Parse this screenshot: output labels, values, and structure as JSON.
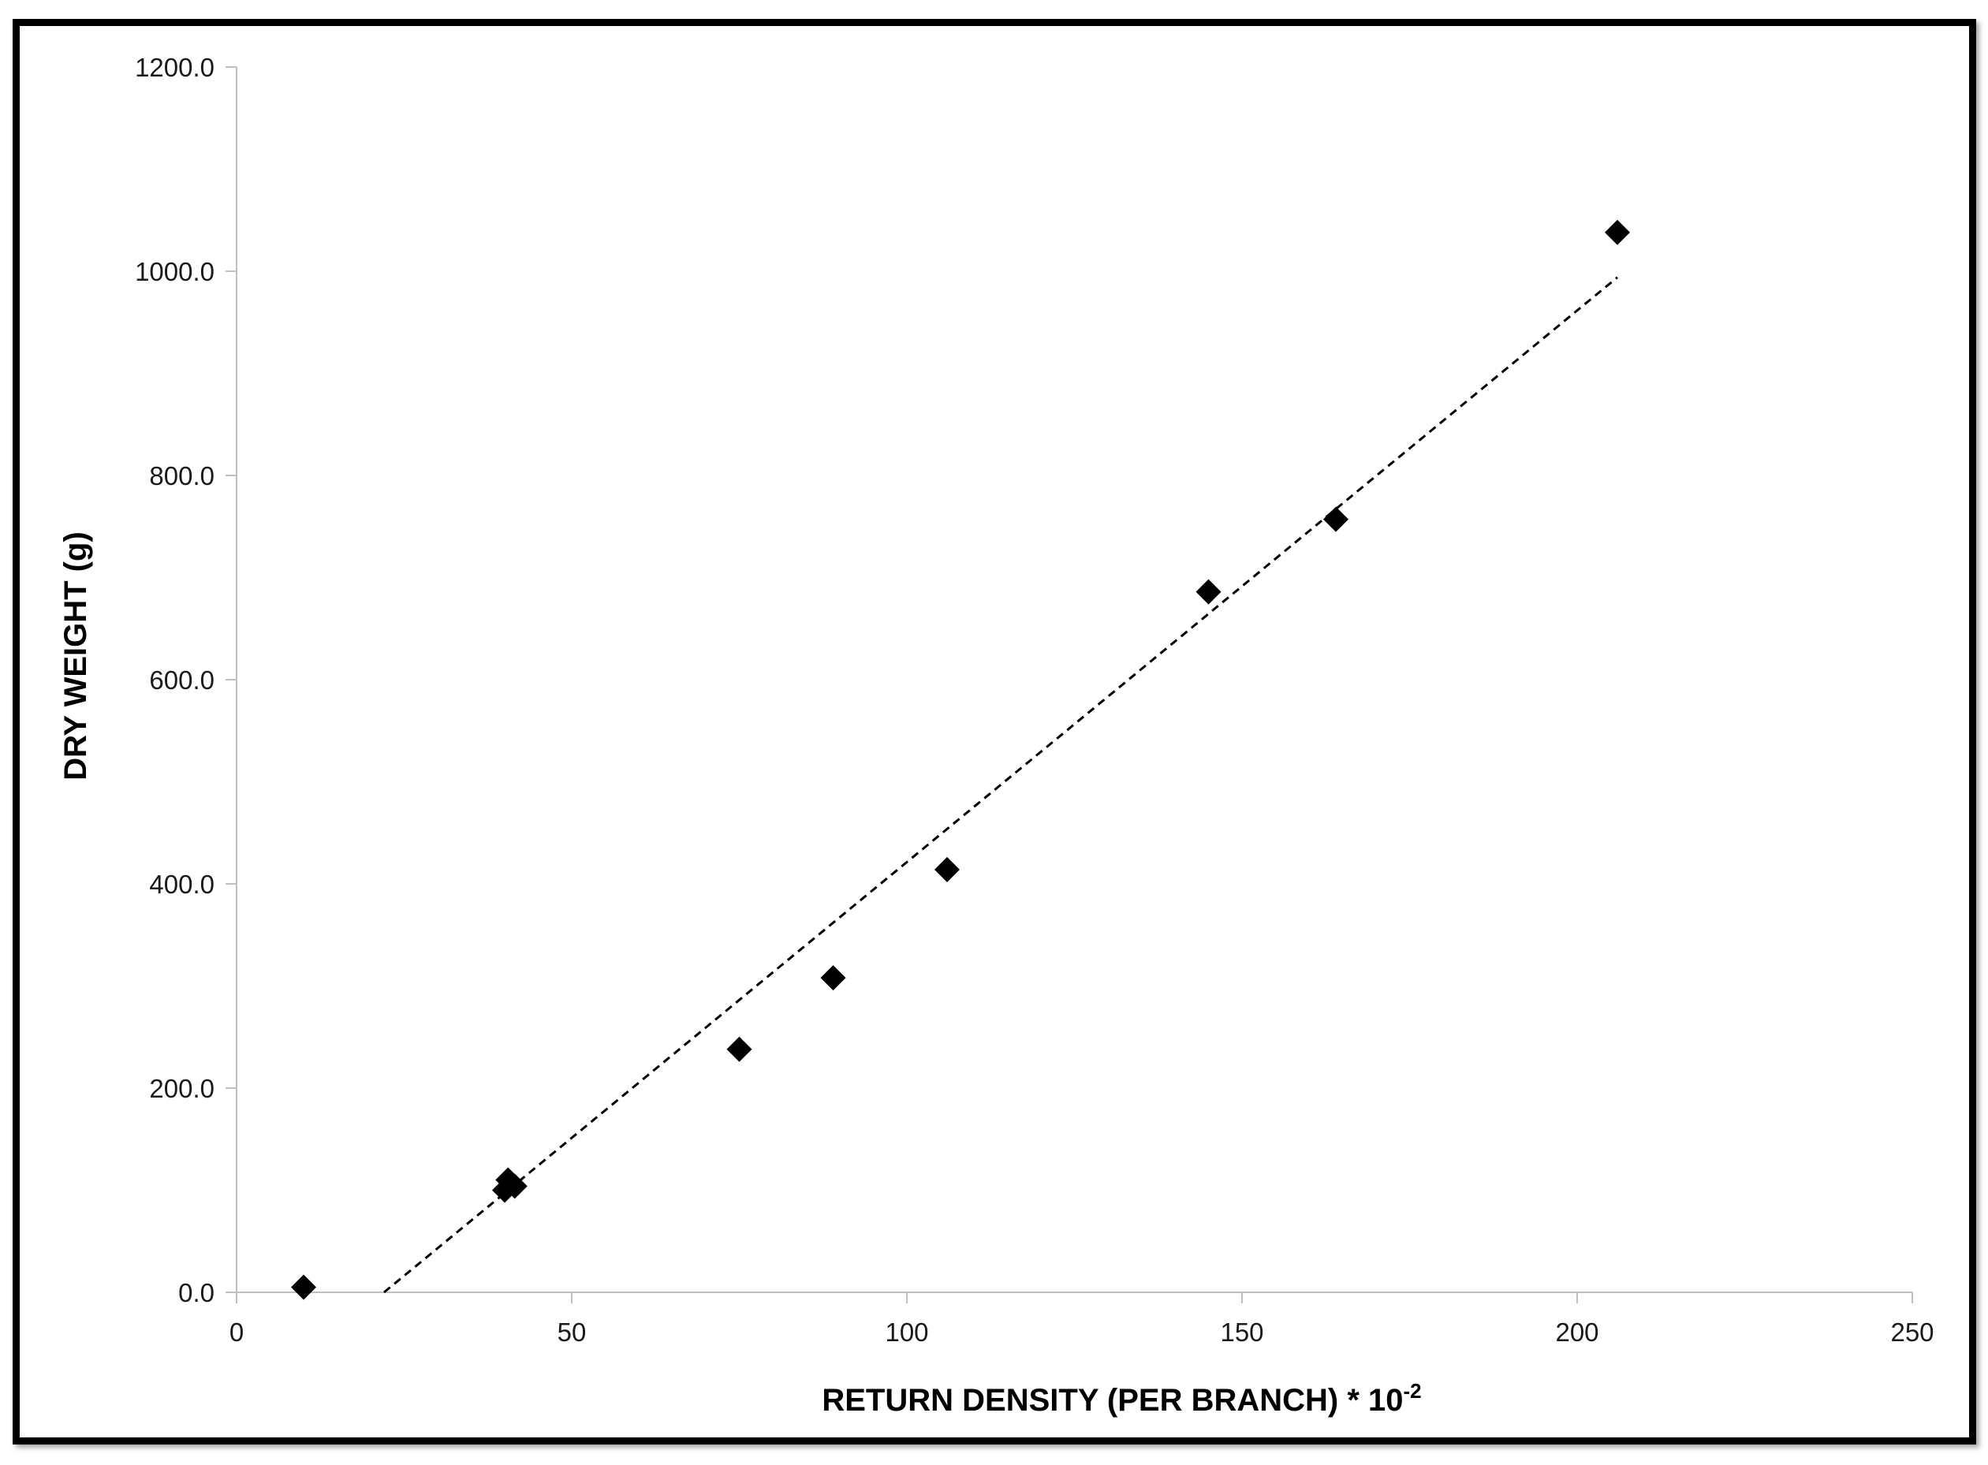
{
  "chart_data": {
    "type": "scatter",
    "title": "",
    "xlabel": "RETURN DENSITY (PER BRANCH) * 10",
    "xlabel_superscript": "-2",
    "ylabel": "DRY WEIGHT (g)",
    "xlim": [
      0,
      250
    ],
    "ylim": [
      0,
      1200
    ],
    "x_ticks": [
      "0",
      "50",
      "100",
      "150",
      "200",
      "250"
    ],
    "y_ticks": [
      "0.0",
      "200.0",
      "400.0",
      "600.0",
      "800.0",
      "1000.0",
      "1200.0"
    ],
    "grid": false,
    "legend": "none",
    "marker": "diamond",
    "marker_color": "#000000",
    "series": [
      {
        "points": [
          {
            "x": 10,
            "y": 5
          },
          {
            "x": 40,
            "y": 100
          },
          {
            "x": 40.5,
            "y": 110
          },
          {
            "x": 41.5,
            "y": 104
          },
          {
            "x": 75,
            "y": 238
          },
          {
            "x": 89,
            "y": 308
          },
          {
            "x": 106,
            "y": 414
          },
          {
            "x": 145,
            "y": 686
          },
          {
            "x": 164,
            "y": 757
          },
          {
            "x": 206,
            "y": 1038
          }
        ]
      }
    ],
    "trendline": {
      "type": "linear",
      "style": "dashed",
      "color": "#000000",
      "x_start": 22,
      "y_start": 0,
      "x_end": 206,
      "y_end": 994
    }
  }
}
